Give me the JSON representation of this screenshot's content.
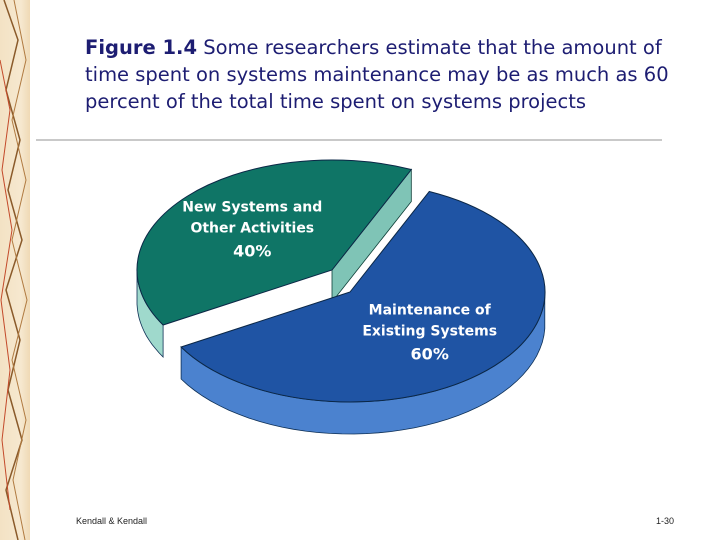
{
  "slide": {
    "figure_label": "Figure 1.4",
    "caption": " Some researchers estimate that the amount of time spent on systems maintenance may be as much as 60 percent of the total time spent on systems projects",
    "footer_left": "Kendall & Kendall",
    "footer_right": "1-30"
  },
  "chart_data": {
    "type": "pie",
    "title": "",
    "slices": [
      {
        "label_lines": [
          "Maintenance of",
          "Existing Systems"
        ],
        "pct_label": "60%",
        "value": 60,
        "color": "#1f54a4",
        "side_color": "#4b82cf"
      },
      {
        "label_lines": [
          "New Systems and",
          "Other Activities"
        ],
        "pct_label": "40%",
        "value": 40,
        "color": "#0f7566",
        "side_color": "#9fd9cc"
      }
    ]
  }
}
